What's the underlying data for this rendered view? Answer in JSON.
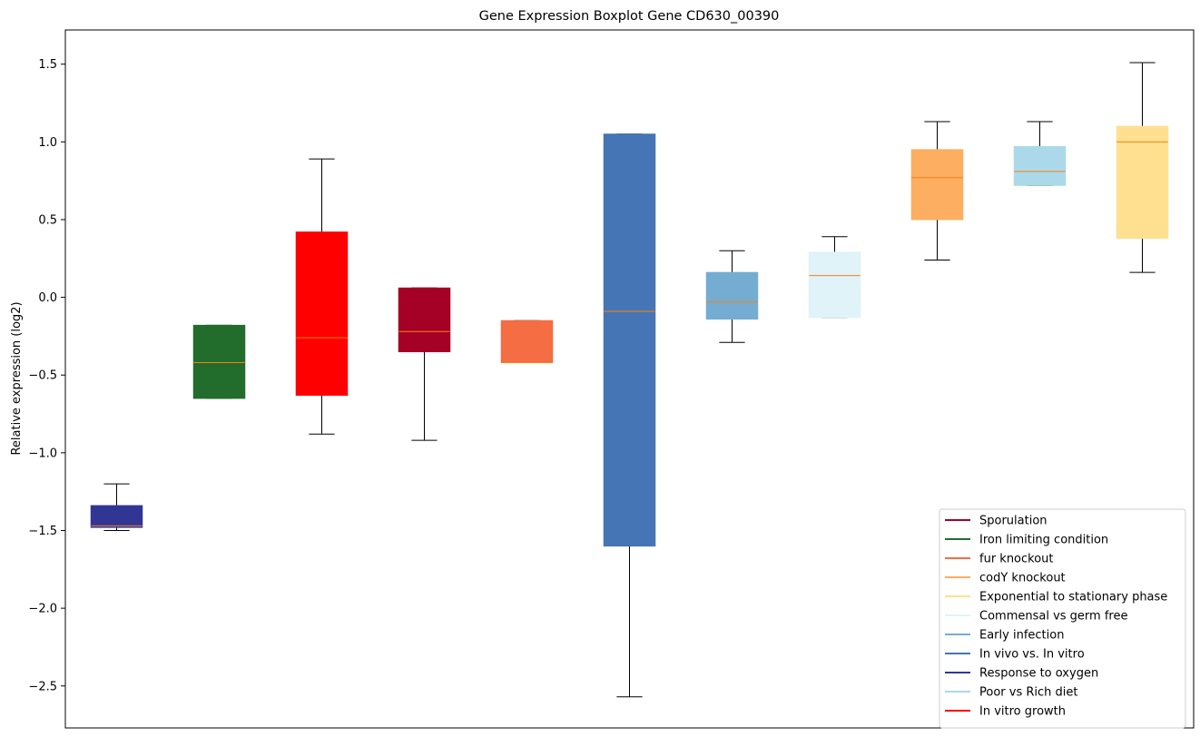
{
  "chart_data": {
    "type": "boxplot",
    "title": "Gene Expression Boxplot Gene CD630_00390",
    "xlabel": "",
    "ylabel": "Relative expression (log2)",
    "ylim": [
      -2.77,
      1.72
    ],
    "yticks": [
      1.5,
      1.0,
      0.5,
      0.0,
      -0.5,
      -1.0,
      -1.5,
      -2.0,
      -2.5
    ],
    "ytick_labels": [
      "1.5",
      "1.0",
      "0.5",
      "0.0",
      "−0.5",
      "−1.0",
      "−1.5",
      "−2.0",
      "−2.5"
    ],
    "grid": false,
    "legend_position": "lower-right",
    "median_color": "#ff7f0e",
    "boxes": [
      {
        "name": "Response to oxygen",
        "color": "#313695",
        "whisker_low": -1.5,
        "q1": -1.48,
        "median": -1.47,
        "q3": -1.34,
        "whisker_high": -1.2
      },
      {
        "name": "Iron limiting condition",
        "color": "#226c2c",
        "whisker_low": -0.65,
        "q1": -0.65,
        "median": -0.42,
        "q3": -0.18,
        "whisker_high": -0.18
      },
      {
        "name": "In vitro growth",
        "color": "#ff0000",
        "whisker_low": -0.88,
        "q1": -0.63,
        "median": -0.26,
        "q3": 0.42,
        "whisker_high": 0.89
      },
      {
        "name": "Sporulation",
        "color": "#a50026",
        "whisker_low": -0.92,
        "q1": -0.35,
        "median": -0.22,
        "q3": 0.06,
        "whisker_high": 0.06
      },
      {
        "name": "fur knockout",
        "color": "#f46d43",
        "whisker_low": -0.42,
        "q1": -0.42,
        "median": -0.42,
        "q3": -0.15,
        "whisker_high": -0.15
      },
      {
        "name": "In vivo vs. In vitro",
        "color": "#4575b4",
        "whisker_low": -2.57,
        "q1": -1.6,
        "median": -0.09,
        "q3": 1.05,
        "whisker_high": 1.05
      },
      {
        "name": "Early infection",
        "color": "#74add1",
        "whisker_low": -0.29,
        "q1": -0.14,
        "median": -0.03,
        "q3": 0.16,
        "whisker_high": 0.3
      },
      {
        "name": "Commensal vs germ free",
        "color": "#e0f3f8",
        "whisker_low": -0.13,
        "q1": -0.13,
        "median": 0.14,
        "q3": 0.29,
        "whisker_high": 0.39
      },
      {
        "name": "codY knockout",
        "color": "#fdae61",
        "whisker_low": 0.24,
        "q1": 0.5,
        "median": 0.77,
        "q3": 0.95,
        "whisker_high": 1.13
      },
      {
        "name": "Poor vs Rich diet",
        "color": "#abd9e9",
        "whisker_low": 0.72,
        "q1": 0.72,
        "median": 0.81,
        "q3": 0.97,
        "whisker_high": 1.13
      },
      {
        "name": "Exponential to stationary phase",
        "color": "#fee090",
        "whisker_low": 0.16,
        "q1": 0.38,
        "median": 1.0,
        "q3": 1.1,
        "whisker_high": 1.51
      }
    ],
    "legend": [
      {
        "label": "Sporulation",
        "color": "#a50026"
      },
      {
        "label": "Iron limiting condition",
        "color": "#226c2c"
      },
      {
        "label": "fur knockout",
        "color": "#f46d43"
      },
      {
        "label": "codY knockout",
        "color": "#fdae61"
      },
      {
        "label": "Exponential to stationary phase",
        "color": "#fee090"
      },
      {
        "label": "Commensal vs germ free",
        "color": "#e0f3f8"
      },
      {
        "label": "Early infection",
        "color": "#74add1"
      },
      {
        "label": "In vivo vs. In vitro",
        "color": "#4575b4"
      },
      {
        "label": "Response to oxygen",
        "color": "#313695"
      },
      {
        "label": "Poor vs Rich diet",
        "color": "#abd9e9"
      },
      {
        "label": "In vitro growth",
        "color": "#ff0000"
      }
    ]
  }
}
